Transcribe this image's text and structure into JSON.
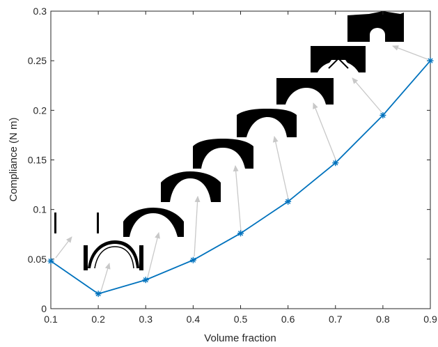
{
  "chart_data": {
    "type": "line",
    "title": "",
    "xlabel": "Volume fraction",
    "ylabel": "Compliance (N m)",
    "xlim": [
      0.1,
      0.9
    ],
    "ylim": [
      0,
      0.3
    ],
    "grid": false,
    "legend": "none",
    "x_ticks": [
      "0.1",
      "0.2",
      "0.3",
      "0.4",
      "0.5",
      "0.6",
      "0.7",
      "0.8",
      "0.9"
    ],
    "y_ticks": [
      "0",
      "0.05",
      "0.1",
      "0.15",
      "0.2",
      "0.25",
      "0.3"
    ],
    "series": [
      {
        "color": "#0072BD",
        "marker": "asterisk",
        "x": [
          0.1,
          0.2,
          0.3,
          0.4,
          0.5,
          0.6,
          0.7,
          0.8,
          0.9
        ],
        "y": [
          0.048,
          0.015,
          0.029,
          0.049,
          0.076,
          0.108,
          0.147,
          0.195,
          0.25
        ]
      }
    ],
    "annotations": {
      "arrow_color": "#C8C8C8",
      "inset_images": [
        {
          "volume_fraction": 0.1,
          "description": "topology-0.1"
        },
        {
          "volume_fraction": 0.2,
          "description": "topology-0.2"
        },
        {
          "volume_fraction": 0.3,
          "description": "topology-0.3"
        },
        {
          "volume_fraction": 0.4,
          "description": "topology-0.4"
        },
        {
          "volume_fraction": 0.5,
          "description": "topology-0.5"
        },
        {
          "volume_fraction": 0.6,
          "description": "topology-0.6"
        },
        {
          "volume_fraction": 0.7,
          "description": "topology-0.7"
        },
        {
          "volume_fraction": 0.8,
          "description": "topology-0.8"
        },
        {
          "volume_fraction": 0.9,
          "description": "topology-0.9"
        }
      ]
    }
  }
}
